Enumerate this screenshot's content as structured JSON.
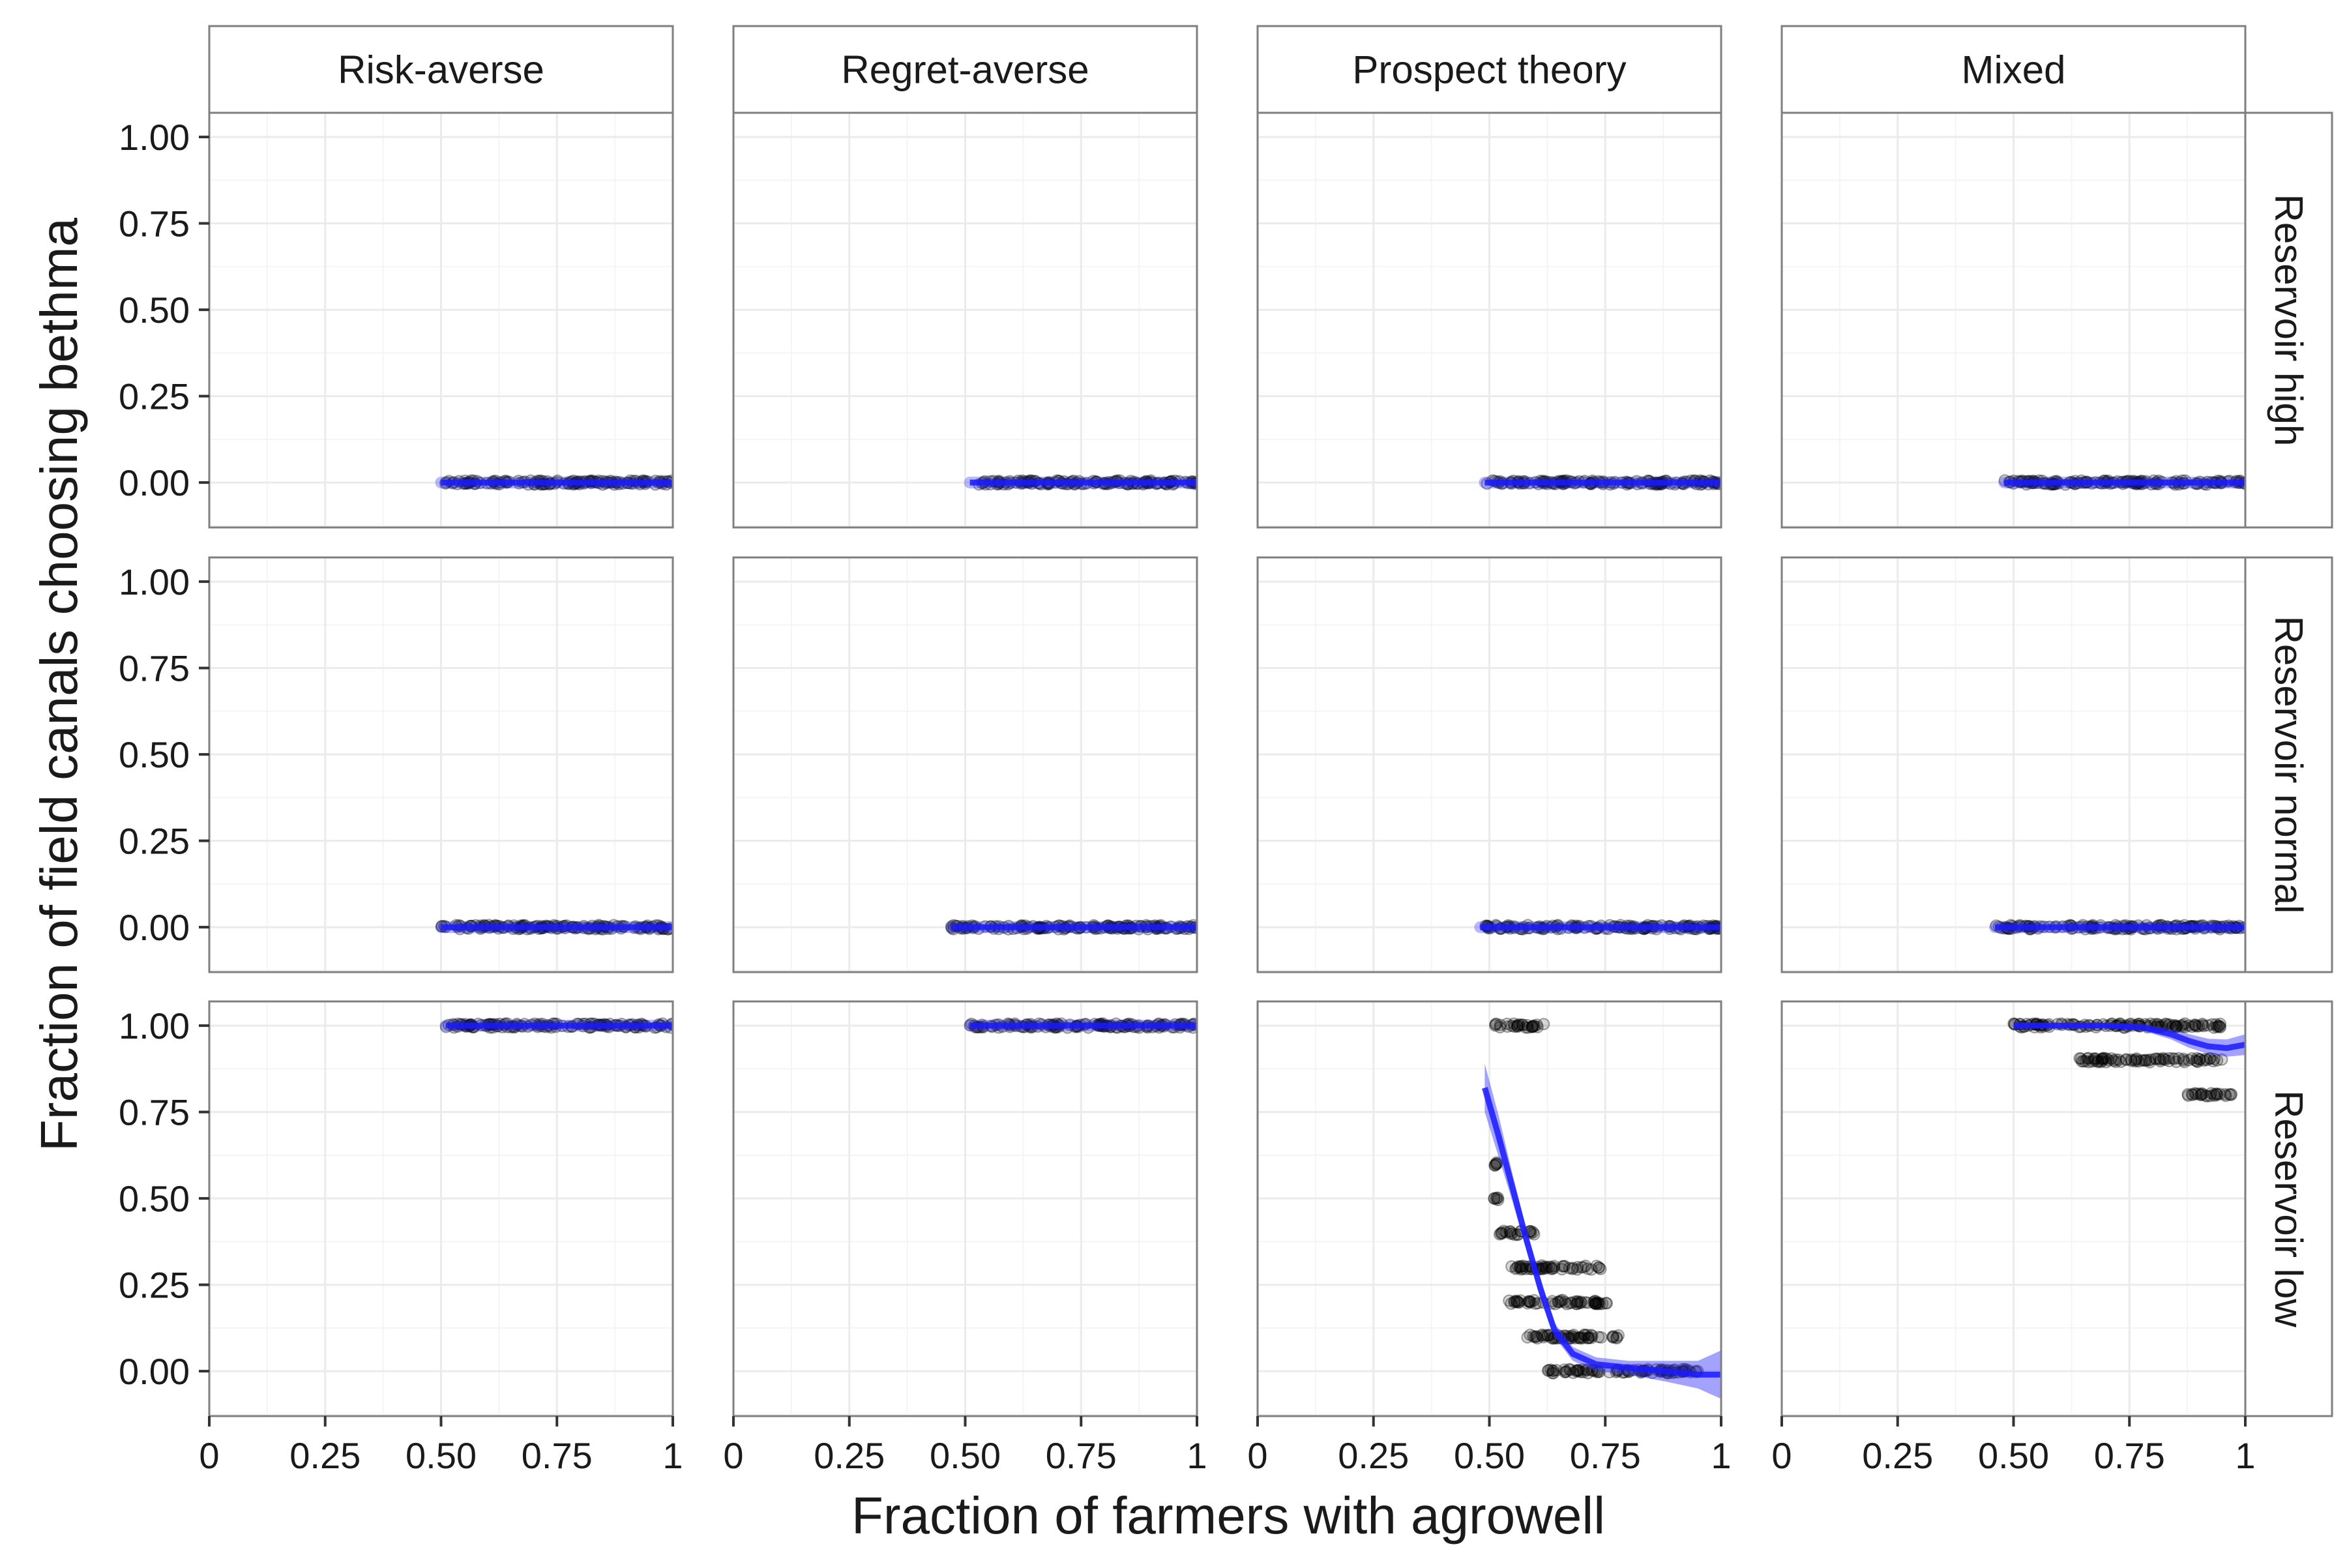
{
  "chart_data": {
    "type": "scatter",
    "title": "",
    "xlabel": "Fraction of  farmers with agrowell",
    "ylabel": "Fraction of field canals choosing bethma",
    "xlim": [
      0,
      1
    ],
    "ylim": [
      -0.13,
      1.07
    ],
    "x_ticks": [
      "0",
      "0.25",
      "0.50",
      "0.75",
      "1"
    ],
    "y_ticks": [
      "1.00",
      "0.75",
      "0.50",
      "0.25",
      "0.00"
    ],
    "grid": true,
    "colors": {
      "points": "#000000",
      "smooth_line": "#1a1aff",
      "smooth_band": "#3333ff",
      "strip_border": "#7f7f7f",
      "grid": "#ebebeb"
    },
    "columns": [
      "Risk-averse",
      "Regret-averse",
      "Prospect theory",
      "Mixed"
    ],
    "rows": [
      "Reservoir high",
      "Reservoir normal",
      "Reservoir low"
    ],
    "panels": [
      {
        "col": 0,
        "row": 0,
        "points": [
          {
            "x_range": [
              0.5,
              1.0
            ],
            "y": 0.0
          }
        ],
        "smooth": [
          [
            0.5,
            0.0
          ],
          [
            1.0,
            0.0
          ]
        ]
      },
      {
        "col": 1,
        "row": 0,
        "points": [
          {
            "x_range": [
              0.51,
              1.0
            ],
            "y": 0.0
          }
        ],
        "smooth": [
          [
            0.51,
            0.0
          ],
          [
            1.0,
            0.0
          ]
        ]
      },
      {
        "col": 2,
        "row": 0,
        "points": [
          {
            "x_range": [
              0.49,
              1.0
            ],
            "y": 0.0
          }
        ],
        "smooth": [
          [
            0.49,
            0.0
          ],
          [
            1.0,
            0.0
          ]
        ]
      },
      {
        "col": 3,
        "row": 0,
        "points": [
          {
            "x_range": [
              0.48,
              1.0
            ],
            "y": 0.0
          }
        ],
        "smooth": [
          [
            0.48,
            0.0
          ],
          [
            1.0,
            0.0
          ]
        ]
      },
      {
        "col": 0,
        "row": 1,
        "points": [
          {
            "x_range": [
              0.5,
              1.0
            ],
            "y": 0.0
          }
        ],
        "smooth": [
          [
            0.5,
            0.0
          ],
          [
            1.0,
            0.0
          ]
        ]
      },
      {
        "col": 1,
        "row": 1,
        "points": [
          {
            "x_range": [
              0.47,
              1.0
            ],
            "y": 0.0
          }
        ],
        "smooth": [
          [
            0.47,
            0.0
          ],
          [
            1.0,
            0.0
          ]
        ]
      },
      {
        "col": 2,
        "row": 1,
        "points": [
          {
            "x_range": [
              0.48,
              1.0
            ],
            "y": 0.0
          }
        ],
        "smooth": [
          [
            0.48,
            0.0
          ],
          [
            1.0,
            0.0
          ]
        ]
      },
      {
        "col": 3,
        "row": 1,
        "points": [
          {
            "x_range": [
              0.46,
              1.0
            ],
            "y": 0.0
          }
        ],
        "smooth": [
          [
            0.46,
            0.0
          ],
          [
            1.0,
            0.0
          ]
        ]
      },
      {
        "col": 0,
        "row": 2,
        "points": [
          {
            "x_range": [
              0.51,
              1.0
            ],
            "y": 1.0
          }
        ],
        "smooth": [
          [
            0.51,
            1.0
          ],
          [
            1.0,
            1.0
          ]
        ]
      },
      {
        "col": 1,
        "row": 2,
        "points": [
          {
            "x_range": [
              0.51,
              1.0
            ],
            "y": 1.0
          }
        ],
        "smooth": [
          [
            0.51,
            1.0
          ],
          [
            1.0,
            1.0
          ]
        ]
      },
      {
        "col": 2,
        "row": 2,
        "points": [
          {
            "x_range": [
              0.51,
              0.62
            ],
            "y": 1.0
          },
          {
            "x_range": [
              0.51,
              0.52
            ],
            "y": 0.6
          },
          {
            "x_range": [
              0.51,
              0.52
            ],
            "y": 0.5
          },
          {
            "x_range": [
              0.52,
              0.6
            ],
            "y": 0.4
          },
          {
            "x_range": [
              0.54,
              0.74
            ],
            "y": 0.3
          },
          {
            "x_range": [
              0.54,
              0.76
            ],
            "y": 0.2
          },
          {
            "x_range": [
              0.58,
              0.79
            ],
            "y": 0.1
          },
          {
            "x_range": [
              0.62,
              0.95
            ],
            "y": 0.0
          }
        ],
        "smooth": [
          [
            0.49,
            0.82
          ],
          [
            0.52,
            0.68
          ],
          [
            0.55,
            0.53
          ],
          [
            0.58,
            0.38
          ],
          [
            0.61,
            0.24
          ],
          [
            0.64,
            0.12
          ],
          [
            0.68,
            0.05
          ],
          [
            0.73,
            0.02
          ],
          [
            0.8,
            0.01
          ],
          [
            0.88,
            0.0
          ],
          [
            0.95,
            -0.01
          ],
          [
            1.0,
            -0.01
          ]
        ],
        "band": [
          0.07,
          0.06,
          0.04,
          0.03,
          0.03,
          0.02,
          0.02,
          0.02,
          0.02,
          0.03,
          0.04,
          0.07
        ]
      },
      {
        "col": 3,
        "row": 2,
        "points": [
          {
            "x_range": [
              0.5,
              0.95
            ],
            "y": 1.0
          },
          {
            "x_range": [
              0.64,
              0.95
            ],
            "y": 0.9
          },
          {
            "x_range": [
              0.87,
              0.97
            ],
            "y": 0.8
          }
        ],
        "smooth": [
          [
            0.5,
            1.0
          ],
          [
            0.6,
            1.0
          ],
          [
            0.7,
            1.0
          ],
          [
            0.78,
            0.995
          ],
          [
            0.84,
            0.975
          ],
          [
            0.88,
            0.955
          ],
          [
            0.92,
            0.94
          ],
          [
            0.96,
            0.935
          ],
          [
            1.0,
            0.945
          ]
        ],
        "band": [
          0.01,
          0.008,
          0.008,
          0.01,
          0.015,
          0.02,
          0.022,
          0.025,
          0.03
        ]
      }
    ]
  }
}
